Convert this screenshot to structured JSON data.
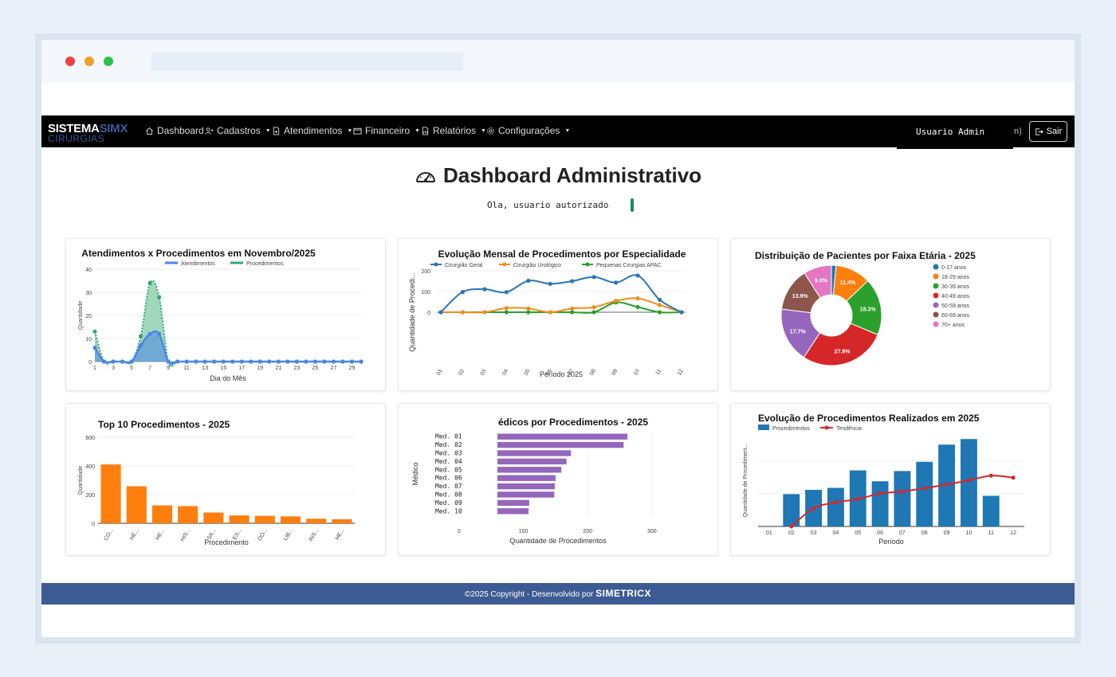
{
  "nav": {
    "brand_top_a": "SISTEMA",
    "brand_top_b": "SIMX",
    "brand_bottom": "CIRURGIAS",
    "items": [
      {
        "label": "Dashboard",
        "icon": "home-icon",
        "dropdown": false
      },
      {
        "label": "Cadastros",
        "icon": "users-icon",
        "dropdown": true
      },
      {
        "label": "Atendimentos",
        "icon": "file-plus-icon",
        "dropdown": true
      },
      {
        "label": "Financeiro",
        "icon": "wallet-icon",
        "dropdown": true
      },
      {
        "label": "Relatórios",
        "icon": "report-icon",
        "dropdown": true
      },
      {
        "label": "Configurações",
        "icon": "gear-icon",
        "dropdown": true
      }
    ],
    "user": "Usuario Admin",
    "user_suffix": "n)",
    "logout": "Sair"
  },
  "page": {
    "title": "Dashboard Administrativo",
    "greeting": "Ola, usuario autorizado"
  },
  "footer": {
    "text": "©2025 Copyright - Desenvolvido por",
    "brand": "SIMETRICX"
  },
  "chart_data": [
    {
      "type": "area",
      "title": "Atendimentos x Procedimentos em Novembro/2025",
      "xlabel": "Dia do Mês",
      "ylabel": "Quantidade",
      "ylim": [
        0,
        40
      ],
      "yticks": [
        0,
        10,
        20,
        30,
        40
      ],
      "xticks": [
        "1",
        "3",
        "5",
        "7",
        "9",
        "11",
        "13",
        "15",
        "17",
        "19",
        "21",
        "23",
        "25",
        "27",
        "29"
      ],
      "x": [
        1,
        2,
        3,
        4,
        5,
        6,
        7,
        8,
        9,
        10,
        11,
        12,
        13,
        14,
        15,
        16,
        17,
        18,
        19,
        20,
        21,
        22,
        23,
        24,
        25,
        26,
        27,
        28,
        29,
        30
      ],
      "series": [
        {
          "name": "Atendimentos",
          "color": "#4a86e8",
          "values": [
            6,
            0,
            0,
            0,
            0,
            7,
            12,
            12,
            0,
            0,
            0,
            0,
            0,
            0,
            0,
            0,
            0,
            0,
            0,
            0,
            0,
            0,
            0,
            0,
            0,
            0,
            0,
            0,
            0,
            0
          ]
        },
        {
          "name": "Procedimentos",
          "color": "#2ea86b",
          "values": [
            13,
            0,
            0,
            0,
            0,
            11,
            34,
            28,
            0,
            0,
            0,
            0,
            0,
            0,
            0,
            0,
            0,
            0,
            0,
            0,
            0,
            0,
            0,
            0,
            0,
            0,
            0,
            0,
            0,
            0
          ]
        }
      ]
    },
    {
      "type": "line",
      "title": "Evolução Mensal de Procedimentos por Especialidade",
      "xlabel": "Período 2025",
      "ylabel": "Quantidade de Procedi...",
      "ylim": [
        0,
        200
      ],
      "yticks": [
        0,
        100,
        200
      ],
      "categories": [
        "01",
        "02",
        "03",
        "04",
        "05",
        "06",
        "07",
        "08",
        "09",
        "10",
        "11",
        "12"
      ],
      "series": [
        {
          "name": "Cirurgião Geral",
          "color": "#2c75b3",
          "values": [
            0,
            98,
            111,
            97,
            152,
            137,
            150,
            170,
            143,
            177,
            60,
            0
          ]
        },
        {
          "name": "Cirurgião Urológico",
          "color": "#f28c1c",
          "values": [
            0,
            0,
            0,
            20,
            18,
            0,
            18,
            24,
            55,
            67,
            35,
            0
          ]
        },
        {
          "name": "Pequenas Cirurgias APAC",
          "color": "#2ca02c",
          "values": [
            0,
            0,
            0,
            0,
            0,
            0,
            0,
            0,
            47,
            25,
            0,
            0
          ]
        }
      ]
    },
    {
      "type": "pie",
      "title": "Distribuição de Pacientes por Faixa Etária - 2025",
      "legend": "right",
      "slices": [
        {
          "label": "0-17 anos",
          "value": 1.5,
          "text": "",
          "color": "#1f77b4"
        },
        {
          "label": "18-29 anos",
          "value": 11.4,
          "text": "11.4%",
          "color": "#ff7f0e"
        },
        {
          "label": "30-39 anos",
          "value": 18.3,
          "text": "18.3%",
          "color": "#2ca02c"
        },
        {
          "label": "40-49 anos",
          "value": 27.9,
          "text": "27.9%",
          "color": "#d62728"
        },
        {
          "label": "50-59 anos",
          "value": 17.7,
          "text": "17.7%",
          "color": "#9467bd"
        },
        {
          "label": "60-69 anos",
          "value": 13.9,
          "text": "13.9%",
          "color": "#8c564b"
        },
        {
          "label": "70+ anos",
          "value": 9.0,
          "text": "9.0%",
          "color": "#e377c2"
        }
      ]
    },
    {
      "type": "bar",
      "title": "Top 10 Procedimentos - 2025",
      "xlabel": "Procedimento",
      "ylabel": "Quantidade",
      "ylim": [
        0,
        600
      ],
      "yticks": [
        0,
        200,
        400,
        600
      ],
      "color": "#ff7f0e",
      "categories": [
        "CO...",
        "HE...",
        "HE...",
        "HIS...",
        "SA...",
        "EX...",
        "OO...",
        "LIB...",
        "INS...",
        "HE..."
      ],
      "values": [
        410,
        258,
        125,
        120,
        75,
        55,
        52,
        48,
        32,
        28
      ]
    },
    {
      "type": "bar",
      "orientation": "horizontal",
      "title": "édicos por Procedimentos - 2025",
      "xlabel": "Quantidade de Procedimentos",
      "ylabel": "Médico",
      "xlim": [
        0,
        330
      ],
      "xticks": [
        0,
        100,
        200,
        300
      ],
      "color": "#9467bd",
      "categories": [
        "Med. 01",
        "Med. 02",
        "Med. 03",
        "Med. 04",
        "Med. 05",
        "Med. 06",
        "Med. 07",
        "Med. 08",
        "Med. 09",
        "Med. 10"
      ],
      "values": [
        262,
        256,
        174,
        167,
        159,
        150,
        149,
        148,
        109,
        108
      ]
    },
    {
      "type": "bar",
      "title": "Evolução de Procedimentos Realizados em 2025",
      "xlabel": "Período",
      "ylabel": "Quantidade de Procediment...",
      "categories": [
        "01",
        "02",
        "03",
        "04",
        "05",
        "06",
        "07",
        "08",
        "09",
        "10",
        "11",
        "12"
      ],
      "series": [
        {
          "name": "Procedimentos",
          "type": "bar",
          "color": "#1f77b4",
          "values": [
            0,
            98,
            111,
            117,
            170,
            137,
            168,
            196,
            248,
            265,
            93,
            0
          ]
        },
        {
          "name": "Tendência",
          "type": "line",
          "color": "#d62728",
          "values": [
            null,
            0,
            55,
            73,
            83,
            100,
            106,
            116,
            127,
            140,
            154,
            148
          ]
        }
      ]
    }
  ]
}
